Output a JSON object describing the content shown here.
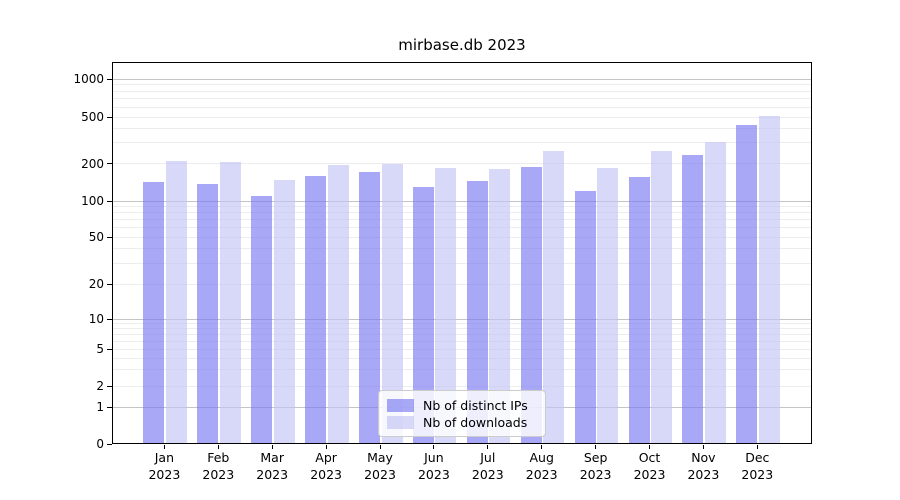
{
  "chart_data": {
    "type": "bar",
    "title": "mirbase.db 2023",
    "x_months": [
      "Jan",
      "Feb",
      "Mar",
      "Apr",
      "May",
      "Jun",
      "Jul",
      "Aug",
      "Sep",
      "Oct",
      "Nov",
      "Dec"
    ],
    "x_year": "2023",
    "series": [
      {
        "name": "Nb of distinct IPs",
        "color": "#a8a8f6",
        "fill": "rgba(121,121,241,0.65)",
        "values": [
          143,
          137,
          109,
          158,
          170,
          130,
          144,
          188,
          121,
          155,
          235,
          430
        ]
      },
      {
        "name": "Nb of downloads",
        "color": "#d8d8f8",
        "fill": "rgba(195,195,244,0.65)",
        "values": [
          209,
          204,
          148,
          195,
          197,
          184,
          181,
          255,
          184,
          255,
          303,
          507
        ]
      }
    ],
    "yscale": "symlog",
    "ylim": [
      0,
      1400
    ],
    "yticks": [
      1000,
      500,
      200,
      100,
      50,
      20,
      10,
      5,
      2,
      1,
      0
    ],
    "grid": {
      "major": [
        1,
        10,
        100,
        1000
      ],
      "minor_decades": [
        1,
        10,
        100
      ],
      "minor_subs": [
        2,
        3,
        4,
        5,
        6,
        7,
        8,
        9
      ]
    },
    "legend_position": "lower-center",
    "colors": {
      "grid_major": "#c4c4c4",
      "grid_minor": "#ededed",
      "spine": "#000000",
      "text": "#000000"
    }
  }
}
